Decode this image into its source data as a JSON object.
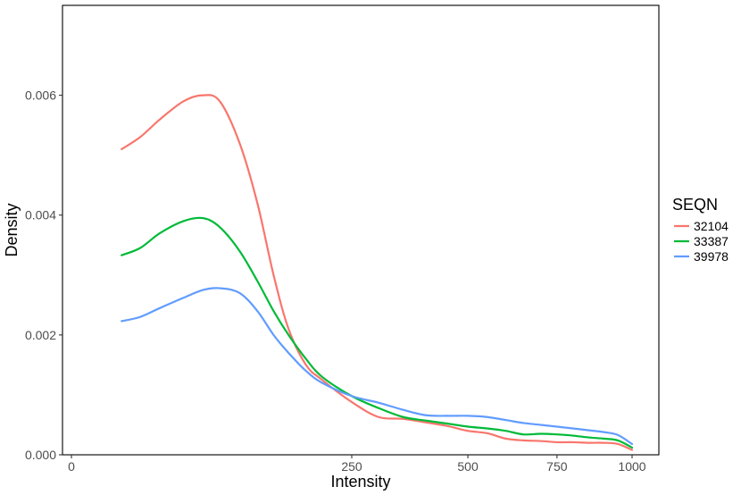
{
  "chart_data": {
    "type": "line",
    "xlabel": "Intensity",
    "ylabel": "Density",
    "x_scale": "sqrt",
    "xlim": [
      0,
      1000
    ],
    "ylim": [
      0,
      0.0075
    ],
    "x_ticks": [
      0,
      250,
      500,
      750,
      1000
    ],
    "x_tick_labels": [
      "0",
      "250",
      "500",
      "750",
      "1000"
    ],
    "y_ticks": [
      0,
      0.002,
      0.004,
      0.006
    ],
    "y_tick_labels": [
      "0.000",
      "0.002",
      "0.004",
      "0.006"
    ],
    "grid": false,
    "legend": {
      "title": "SEQN",
      "position": "right"
    },
    "series": [
      {
        "name": "32104",
        "color": "#F8766D",
        "x": [
          8,
          15,
          25,
          40,
          55,
          70,
          90,
          110,
          130,
          150,
          175,
          200,
          250,
          300,
          350,
          400,
          450,
          500,
          550,
          600,
          650,
          700,
          750,
          800,
          850,
          900,
          950,
          1000
        ],
        "y": [
          0.0051,
          0.0053,
          0.0056,
          0.0059,
          0.006,
          0.0059,
          0.0052,
          0.0042,
          0.003,
          0.0021,
          0.0015,
          0.00125,
          0.00088,
          0.00063,
          0.0006,
          0.00054,
          0.00048,
          0.0004,
          0.00036,
          0.00027,
          0.00024,
          0.00023,
          0.00021,
          0.00021,
          0.0002,
          0.0002,
          0.00018,
          8e-05
        ]
      },
      {
        "name": "33387",
        "color": "#00BA38",
        "x": [
          8,
          15,
          25,
          40,
          55,
          70,
          90,
          110,
          130,
          150,
          175,
          200,
          250,
          300,
          350,
          400,
          450,
          500,
          550,
          600,
          650,
          700,
          750,
          800,
          850,
          900,
          950,
          1000
        ],
        "y": [
          0.00333,
          0.00345,
          0.0037,
          0.0039,
          0.00395,
          0.0038,
          0.0034,
          0.0029,
          0.0024,
          0.002,
          0.0016,
          0.0013,
          0.00098,
          0.00078,
          0.00063,
          0.00057,
          0.00052,
          0.00047,
          0.00044,
          0.0004,
          0.00034,
          0.00035,
          0.00034,
          0.00032,
          0.00029,
          0.00027,
          0.00024,
          0.00012
        ]
      },
      {
        "name": "39978",
        "color": "#619CFF",
        "x": [
          8,
          15,
          25,
          40,
          55,
          70,
          90,
          110,
          130,
          150,
          175,
          200,
          250,
          300,
          350,
          400,
          450,
          500,
          550,
          600,
          650,
          700,
          750,
          800,
          850,
          900,
          950,
          1000
        ],
        "y": [
          0.00223,
          0.0023,
          0.00245,
          0.00262,
          0.00275,
          0.00278,
          0.0027,
          0.0024,
          0.002,
          0.0017,
          0.0014,
          0.0012,
          0.00098,
          0.00087,
          0.00075,
          0.00066,
          0.00065,
          0.00065,
          0.00063,
          0.00058,
          0.00053,
          0.0005,
          0.00047,
          0.00044,
          0.00041,
          0.00038,
          0.00033,
          0.00018
        ]
      }
    ]
  }
}
